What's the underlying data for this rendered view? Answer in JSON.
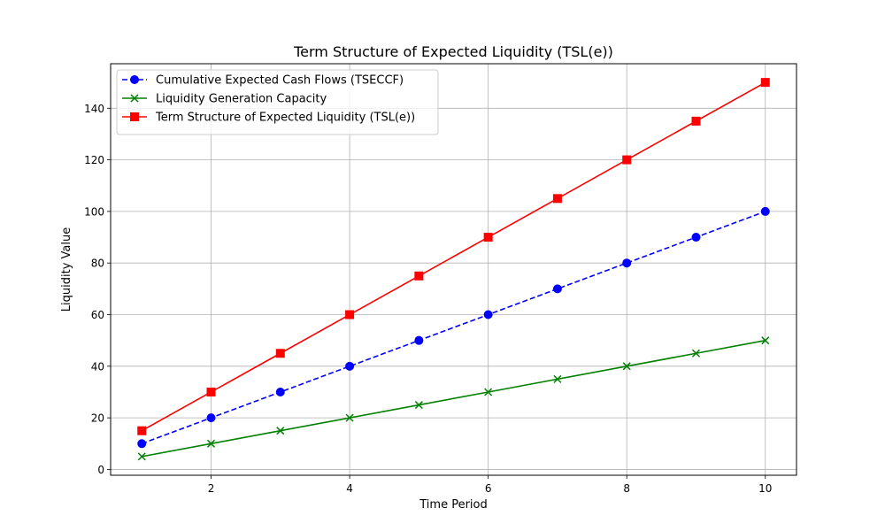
{
  "chart_data": {
    "type": "line",
    "title": "Term Structure of Expected Liquidity (TSL(e))",
    "xlabel": "Time Period",
    "ylabel": "Liquidity Value",
    "xlim": [
      0.55,
      10.45
    ],
    "ylim": [
      -2.25,
      157.25
    ],
    "xticks": [
      2,
      4,
      6,
      8,
      10
    ],
    "yticks": [
      0,
      20,
      40,
      60,
      80,
      100,
      120,
      140
    ],
    "grid": true,
    "legend_position": "top-left",
    "x": [
      1,
      2,
      3,
      4,
      5,
      6,
      7,
      8,
      9,
      10
    ],
    "series": [
      {
        "name": "Cumulative Expected Cash Flows (TSECCF)",
        "values": [
          10,
          20,
          30,
          40,
          50,
          60,
          70,
          80,
          90,
          100
        ],
        "color": "#0000ff",
        "linestyle": "dashed",
        "marker": "circle"
      },
      {
        "name": "Liquidity Generation Capacity",
        "values": [
          5,
          10,
          15,
          20,
          25,
          30,
          35,
          40,
          45,
          50
        ],
        "color": "#008000",
        "linestyle": "solid",
        "marker": "x"
      },
      {
        "name": "Term Structure of Expected Liquidity (TSL(e))",
        "values": [
          15,
          30,
          45,
          60,
          75,
          90,
          105,
          120,
          135,
          150
        ],
        "color": "#ff0000",
        "linestyle": "solid",
        "marker": "square"
      }
    ]
  }
}
